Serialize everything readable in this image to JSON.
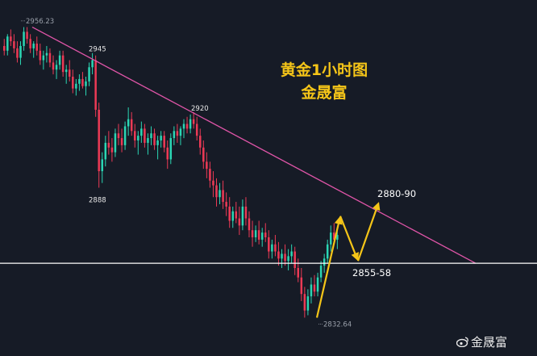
{
  "title": "黄金1小时图",
  "subtitle": "金晟富",
  "watermark": "金晟富",
  "colors": {
    "background": "#161b26",
    "up": "#2bd6b4",
    "down": "#ec3a55",
    "trendline": "#e055a8",
    "support": "#ffffff",
    "projection": "#f5c518",
    "title": "#f5c518"
  },
  "chart_data": {
    "type": "candlestick",
    "instrument": "XAU/USD",
    "timeframe": "1H",
    "ylim": [
      2827,
      2962
    ],
    "price_labels": [
      {
        "text": "2956.23",
        "price": 2956.23
      },
      {
        "text": "2945",
        "price": 2945
      },
      {
        "text": "2920",
        "price": 2920
      },
      {
        "text": "2888",
        "price": 2888
      },
      {
        "text": "2832.64",
        "price": 2832.64
      },
      {
        "text": "2880-90",
        "price": 2880
      },
      {
        "text": "2855-58",
        "price": 2855
      }
    ],
    "downtrend_line": {
      "from_price": 2956,
      "to_price": 2856
    },
    "support_level": 2856,
    "projection": {
      "path_prices": [
        2833,
        2876,
        2857,
        2882
      ],
      "target": "2880-90",
      "pullback": "2855-58"
    },
    "candles": [
      [
        2948,
        2951,
        2944,
        2946
      ],
      [
        2946,
        2953,
        2944,
        2952
      ],
      [
        2952,
        2955,
        2948,
        2950
      ],
      [
        2950,
        2953,
        2945,
        2947
      ],
      [
        2947,
        2950,
        2941,
        2943
      ],
      [
        2943,
        2950,
        2940,
        2948
      ],
      [
        2948,
        2956,
        2946,
        2954
      ],
      [
        2954,
        2956,
        2949,
        2951
      ],
      [
        2951,
        2953,
        2945,
        2947
      ],
      [
        2947,
        2950,
        2943,
        2949
      ],
      [
        2949,
        2952,
        2944,
        2946
      ],
      [
        2946,
        2949,
        2940,
        2942
      ],
      [
        2942,
        2946,
        2938,
        2944
      ],
      [
        2944,
        2948,
        2941,
        2945
      ],
      [
        2945,
        2947,
        2939,
        2941
      ],
      [
        2941,
        2944,
        2936,
        2938
      ],
      [
        2938,
        2942,
        2934,
        2940
      ],
      [
        2940,
        2946,
        2938,
        2944
      ],
      [
        2944,
        2946,
        2935,
        2937
      ],
      [
        2937,
        2940,
        2932,
        2938
      ],
      [
        2938,
        2942,
        2933,
        2935
      ],
      [
        2935,
        2938,
        2928,
        2930
      ],
      [
        2930,
        2934,
        2927,
        2932
      ],
      [
        2932,
        2936,
        2929,
        2934
      ],
      [
        2934,
        2937,
        2930,
        2931
      ],
      [
        2931,
        2935,
        2927,
        2933
      ],
      [
        2933,
        2941,
        2931,
        2939
      ],
      [
        2939,
        2945,
        2936,
        2942
      ],
      [
        2942,
        2944,
        2918,
        2921
      ],
      [
        2921,
        2924,
        2888,
        2895
      ],
      [
        2895,
        2903,
        2890,
        2900
      ],
      [
        2900,
        2910,
        2897,
        2907
      ],
      [
        2907,
        2912,
        2902,
        2905
      ],
      [
        2905,
        2909,
        2899,
        2903
      ],
      [
        2903,
        2913,
        2901,
        2911
      ],
      [
        2911,
        2915,
        2906,
        2909
      ],
      [
        2909,
        2913,
        2903,
        2906
      ],
      [
        2906,
        2916,
        2904,
        2914
      ],
      [
        2914,
        2922,
        2910,
        2917
      ],
      [
        2917,
        2920,
        2910,
        2912
      ],
      [
        2912,
        2915,
        2905,
        2908
      ],
      [
        2908,
        2912,
        2902,
        2910
      ],
      [
        2910,
        2916,
        2907,
        2913
      ],
      [
        2913,
        2915,
        2905,
        2907
      ],
      [
        2907,
        2911,
        2902,
        2909
      ],
      [
        2909,
        2914,
        2906,
        2911
      ],
      [
        2911,
        2913,
        2904,
        2906
      ],
      [
        2906,
        2910,
        2900,
        2908
      ],
      [
        2908,
        2912,
        2905,
        2910
      ],
      [
        2910,
        2912,
        2903,
        2905
      ],
      [
        2905,
        2908,
        2896,
        2900
      ],
      [
        2900,
        2911,
        2898,
        2909
      ],
      [
        2909,
        2914,
        2906,
        2912
      ],
      [
        2912,
        2915,
        2907,
        2910
      ],
      [
        2910,
        2914,
        2906,
        2913
      ],
      [
        2913,
        2917,
        2909,
        2915
      ],
      [
        2915,
        2918,
        2911,
        2913
      ],
      [
        2913,
        2919,
        2911,
        2917
      ],
      [
        2917,
        2920,
        2913,
        2915
      ],
      [
        2915,
        2918,
        2908,
        2910
      ],
      [
        2910,
        2913,
        2902,
        2905
      ],
      [
        2905,
        2908,
        2896,
        2899
      ],
      [
        2899,
        2903,
        2892,
        2896
      ],
      [
        2896,
        2899,
        2888,
        2891
      ],
      [
        2891,
        2895,
        2884,
        2889
      ],
      [
        2889,
        2892,
        2880,
        2884
      ],
      [
        2884,
        2890,
        2881,
        2887
      ],
      [
        2887,
        2891,
        2879,
        2882
      ],
      [
        2882,
        2886,
        2876,
        2880
      ],
      [
        2880,
        2884,
        2871,
        2874
      ],
      [
        2874,
        2880,
        2871,
        2878
      ],
      [
        2878,
        2882,
        2873,
        2875
      ],
      [
        2875,
        2880,
        2868,
        2872
      ],
      [
        2872,
        2883,
        2870,
        2880
      ],
      [
        2880,
        2884,
        2872,
        2875
      ],
      [
        2875,
        2878,
        2867,
        2870
      ],
      [
        2870,
        2874,
        2863,
        2867
      ],
      [
        2867,
        2872,
        2865,
        2870
      ],
      [
        2870,
        2874,
        2864,
        2866
      ],
      [
        2866,
        2871,
        2863,
        2869
      ],
      [
        2869,
        2873,
        2865,
        2867
      ],
      [
        2867,
        2870,
        2858,
        2861
      ],
      [
        2861,
        2866,
        2858,
        2864
      ],
      [
        2864,
        2868,
        2859,
        2861
      ],
      [
        2861,
        2865,
        2855,
        2858
      ],
      [
        2858,
        2862,
        2854,
        2860
      ],
      [
        2860,
        2864,
        2855,
        2857
      ],
      [
        2857,
        2862,
        2853,
        2859
      ],
      [
        2859,
        2864,
        2856,
        2861
      ],
      [
        2861,
        2863,
        2851,
        2854
      ],
      [
        2854,
        2858,
        2848,
        2850
      ],
      [
        2850,
        2854,
        2840,
        2843
      ],
      [
        2843,
        2846,
        2833,
        2836
      ],
      [
        2836,
        2845,
        2834,
        2842
      ],
      [
        2842,
        2850,
        2839,
        2847
      ],
      [
        2847,
        2851,
        2842,
        2844
      ],
      [
        2844,
        2852,
        2842,
        2850
      ],
      [
        2850,
        2857,
        2848,
        2855
      ],
      [
        2855,
        2860,
        2852,
        2858
      ],
      [
        2858,
        2866,
        2856,
        2864
      ],
      [
        2864,
        2872,
        2861,
        2869
      ],
      [
        2869,
        2873,
        2864,
        2866
      ],
      [
        2866,
        2870,
        2862,
        2868
      ]
    ]
  }
}
